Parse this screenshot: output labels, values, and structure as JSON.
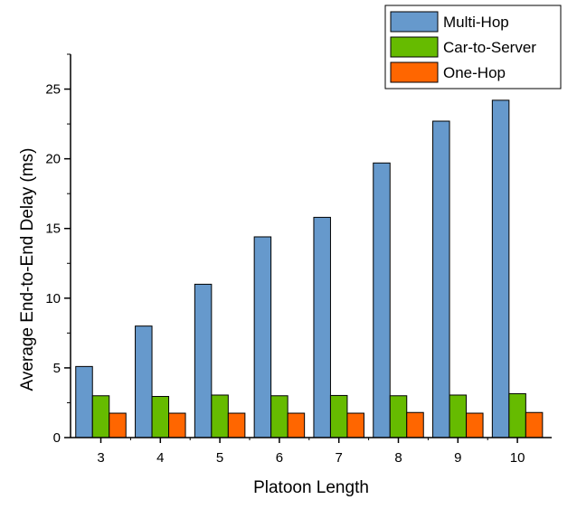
{
  "chart_data": {
    "type": "bar",
    "xlabel": "Platoon Length",
    "ylabel": "Average End-to-End Delay (ms)",
    "categories": [
      "3",
      "4",
      "5",
      "6",
      "7",
      "8",
      "9",
      "10"
    ],
    "ylim": [
      0,
      27.5
    ],
    "yticks": [
      0,
      5,
      10,
      15,
      20,
      25
    ],
    "grid": false,
    "legend_position": "top-right",
    "series": [
      {
        "name": "Multi-Hop",
        "color": "#6699CC",
        "values": [
          5.1,
          8.0,
          11.0,
          14.4,
          15.8,
          19.7,
          22.7,
          24.2
        ]
      },
      {
        "name": "Car-to-Server",
        "color": "#66BB00",
        "values": [
          3.0,
          2.95,
          3.05,
          3.0,
          3.02,
          3.0,
          3.05,
          3.15
        ]
      },
      {
        "name": "One-Hop",
        "color": "#FF6600",
        "values": [
          1.75,
          1.75,
          1.75,
          1.75,
          1.75,
          1.8,
          1.75,
          1.8
        ]
      }
    ]
  }
}
